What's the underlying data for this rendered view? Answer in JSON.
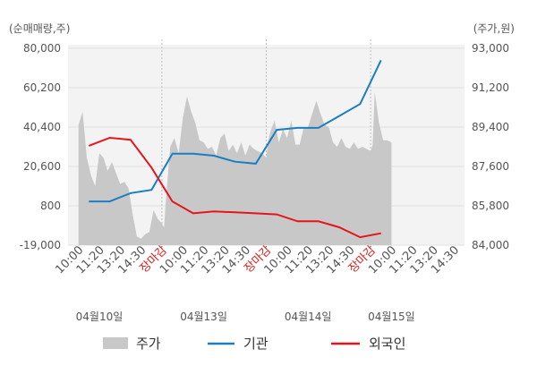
{
  "chart_data": {
    "type": "line",
    "left_unit": "(순매매량,주)",
    "right_unit": "(주가,원)",
    "y_left": {
      "min": -19000,
      "max": 80000,
      "ticks": [
        {
          "v": 80000,
          "label": "80,000"
        },
        {
          "v": 60200,
          "label": "60,200"
        },
        {
          "v": 40400,
          "label": "40,400"
        },
        {
          "v": 20600,
          "label": "20,600"
        },
        {
          "v": 800,
          "label": "800"
        },
        {
          "v": -19000,
          "label": "-19,000"
        }
      ]
    },
    "y_right": {
      "min": 84000,
      "max": 93000,
      "ticks": [
        {
          "v": 93000,
          "label": "93,000"
        },
        {
          "v": 91200,
          "label": "91,200"
        },
        {
          "v": 89400,
          "label": "89,400"
        },
        {
          "v": 87600,
          "label": "87,600"
        },
        {
          "v": 85800,
          "label": "85,800"
        },
        {
          "v": 84000,
          "label": "84,000"
        }
      ]
    },
    "x_ticks": [
      {
        "label": "10:00",
        "close": false
      },
      {
        "label": "11:20",
        "close": false
      },
      {
        "label": "13:20",
        "close": false
      },
      {
        "label": "14:30",
        "close": false
      },
      {
        "label": "장마감",
        "close": true
      },
      {
        "label": "10:00",
        "close": false
      },
      {
        "label": "11:20",
        "close": false
      },
      {
        "label": "13:20",
        "close": false
      },
      {
        "label": "14:30",
        "close": false
      },
      {
        "label": "장마감",
        "close": true
      },
      {
        "label": "10:00",
        "close": false
      },
      {
        "label": "11:20",
        "close": false
      },
      {
        "label": "13:20",
        "close": false
      },
      {
        "label": "14:30",
        "close": false
      },
      {
        "label": "장마감",
        "close": true
      },
      {
        "label": "10:00",
        "close": false
      },
      {
        "label": "11:20",
        "close": false
      },
      {
        "label": "13:20",
        "close": false
      },
      {
        "label": "14:30",
        "close": false
      }
    ],
    "day_labels": [
      {
        "label": "04월10일",
        "tick_index": 1
      },
      {
        "label": "04월13일",
        "tick_index": 6
      },
      {
        "label": "04월14일",
        "tick_index": 11
      },
      {
        "label": "04월15일",
        "tick_index": 15
      }
    ],
    "series": [
      {
        "name": "주가",
        "type": "area",
        "axis": "right",
        "color": "#c8c8c8",
        "x": [
          0,
          0.2,
          0.4,
          0.6,
          0.8,
          1,
          1.2,
          1.4,
          1.6,
          1.8,
          2,
          2.2,
          2.4,
          2.6,
          2.8,
          3,
          3.2,
          3.4,
          3.6,
          3.8,
          4,
          4.1,
          4.2,
          4.4,
          4.6,
          4.8,
          5,
          5.2,
          5.4,
          5.6,
          5.8,
          6,
          6.2,
          6.4,
          6.6,
          6.8,
          7,
          7.2,
          7.4,
          7.6,
          7.8,
          8,
          8.2,
          8.4,
          8.6,
          8.8,
          9,
          9.1,
          9.2,
          9.4,
          9.6,
          9.8,
          10,
          10.2,
          10.4,
          10.6,
          10.8,
          11,
          11.2,
          11.4,
          11.6,
          11.8,
          12,
          12.2,
          12.4,
          12.6,
          12.8,
          13,
          13.2,
          13.4,
          13.6,
          13.8,
          14,
          14.1,
          14.2,
          14.4,
          14.6,
          14.8,
          15
        ],
        "values": [
          89500,
          90100,
          88000,
          87200,
          86700,
          88200,
          88000,
          87400,
          87800,
          87300,
          86800,
          86900,
          86600,
          85400,
          84400,
          84300,
          84500,
          84600,
          85600,
          85200,
          85000,
          84800,
          86200,
          88500,
          88900,
          88200,
          89800,
          90800,
          90100,
          89600,
          88800,
          88700,
          88400,
          88500,
          88100,
          88900,
          89100,
          88300,
          88600,
          88200,
          88700,
          88100,
          88600,
          88400,
          88300,
          88200,
          88000,
          88800,
          89200,
          89700,
          88700,
          89300,
          88900,
          89700,
          88600,
          88600,
          89400,
          89400,
          90000,
          90600,
          90000,
          89500,
          89400,
          88700,
          88500,
          88900,
          88500,
          88400,
          88700,
          88400,
          88500,
          88400,
          88300,
          88600,
          91000,
          89600,
          88800,
          88800,
          88700
        ]
      },
      {
        "name": "기관",
        "type": "line",
        "axis": "left",
        "color": "#1a7ec3",
        "x": [
          0.5,
          1.5,
          2.5,
          3.5,
          4.5,
          5.5,
          6.5,
          7.5,
          8.5,
          9.5,
          10.5,
          11.5,
          12.5,
          13.5,
          14.5
        ],
        "values": [
          3000,
          3000,
          7200,
          8800,
          27000,
          27000,
          26000,
          23000,
          22000,
          39000,
          40000,
          40000,
          46000,
          52000,
          74000
        ]
      },
      {
        "name": "외국인",
        "type": "line",
        "axis": "left",
        "color": "#e8141b",
        "x": [
          0.5,
          1.5,
          2.5,
          3.5,
          4.5,
          5.5,
          6.5,
          7.5,
          8.5,
          9.5,
          10.5,
          11.5,
          12.5,
          13.5,
          14.5
        ],
        "values": [
          31000,
          35000,
          34000,
          20000,
          3000,
          -3000,
          -2000,
          -2500,
          -3000,
          -3500,
          -7000,
          -7000,
          -10000,
          -15000,
          -13000
        ]
      }
    ]
  }
}
